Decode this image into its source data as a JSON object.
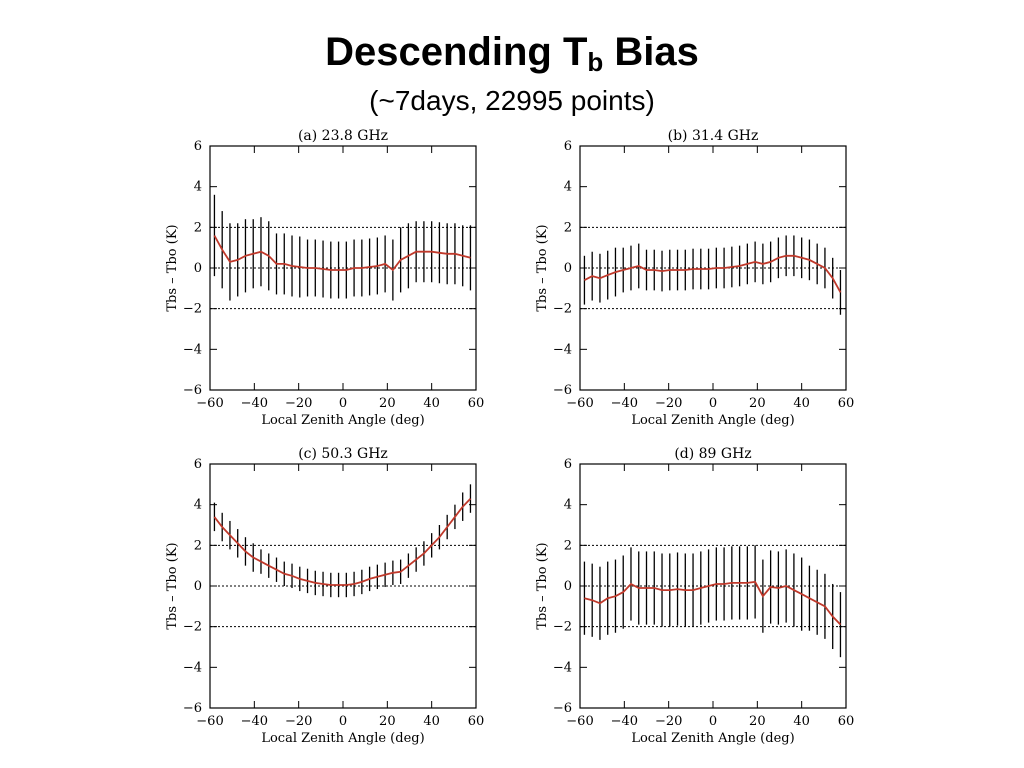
{
  "title": {
    "main": "Descending T",
    "sub": "b",
    "suffix": " Bias",
    "subtitle": "(~7days, 22995 points)"
  },
  "colors": {
    "mean_line": "#c0392b",
    "error_bar": "#000000",
    "axis": "#000000"
  },
  "chart_data": [
    {
      "type": "line",
      "title": "(a) 23.8 GHz",
      "xlabel": "Local Zenith Angle (deg)",
      "ylabel": "Tbs – Tbo (K)",
      "xlim": [
        -60,
        60
      ],
      "ylim": [
        -6,
        6
      ],
      "xticks": [
        -60,
        -40,
        -20,
        0,
        20,
        40,
        60
      ],
      "yticks": [
        -6,
        -4,
        -2,
        0,
        2,
        4,
        6
      ],
      "reference_lines": [
        2,
        0,
        -2
      ],
      "x": [
        -58,
        -54.5,
        -51,
        -47.5,
        -44,
        -40.5,
        -37,
        -33.5,
        -30,
        -26.5,
        -23,
        -19.5,
        -16,
        -12.5,
        -9,
        -5.5,
        -2,
        1.5,
        5,
        8.5,
        12,
        15.5,
        19,
        22.5,
        26,
        29.5,
        33,
        36.5,
        40,
        43.5,
        47,
        50.5,
        54,
        57.5
      ],
      "series": [
        {
          "values": [
            1.6,
            0.9,
            0.3,
            0.4,
            0.6,
            0.7,
            0.8,
            0.6,
            0.2,
            0.2,
            0.1,
            0.05,
            0.0,
            0.0,
            -0.05,
            -0.1,
            -0.1,
            -0.1,
            0.0,
            0.0,
            0.05,
            0.1,
            0.2,
            -0.1,
            0.4,
            0.6,
            0.8,
            0.8,
            0.8,
            0.75,
            0.7,
            0.7,
            0.6,
            0.5
          ],
          "err": [
            2.0,
            1.9,
            1.9,
            1.8,
            1.8,
            1.7,
            1.7,
            1.7,
            1.5,
            1.5,
            1.5,
            1.5,
            1.4,
            1.4,
            1.4,
            1.4,
            1.4,
            1.4,
            1.4,
            1.4,
            1.4,
            1.4,
            1.4,
            1.5,
            1.6,
            1.6,
            1.5,
            1.5,
            1.5,
            1.5,
            1.5,
            1.5,
            1.5,
            1.6
          ]
        }
      ]
    },
    {
      "type": "line",
      "title": "(b) 31.4 GHz",
      "xlabel": "Local Zenith Angle (deg)",
      "ylabel": "Tbs – Tbo (K)",
      "xlim": [
        -60,
        60
      ],
      "ylim": [
        -6,
        6
      ],
      "xticks": [
        -60,
        -40,
        -20,
        0,
        20,
        40,
        60
      ],
      "yticks": [
        -6,
        -4,
        -2,
        0,
        2,
        4,
        6
      ],
      "reference_lines": [
        2,
        0,
        -2
      ],
      "x": [
        -58,
        -54.5,
        -51,
        -47.5,
        -44,
        -40.5,
        -37,
        -33.5,
        -30,
        -26.5,
        -23,
        -19.5,
        -16,
        -12.5,
        -9,
        -5.5,
        -2,
        1.5,
        5,
        8.5,
        12,
        15.5,
        19,
        22.5,
        26,
        29.5,
        33,
        36.5,
        40,
        43.5,
        47,
        50.5,
        54,
        57.5
      ],
      "series": [
        {
          "values": [
            -0.6,
            -0.4,
            -0.5,
            -0.35,
            -0.2,
            -0.1,
            0.0,
            0.1,
            -0.1,
            -0.1,
            -0.15,
            -0.1,
            -0.1,
            -0.1,
            -0.05,
            -0.05,
            -0.05,
            0.0,
            0.0,
            0.05,
            0.1,
            0.2,
            0.3,
            0.2,
            0.3,
            0.5,
            0.6,
            0.6,
            0.5,
            0.4,
            0.2,
            0.0,
            -0.5,
            -1.2
          ],
          "err": [
            1.2,
            1.2,
            1.2,
            1.2,
            1.2,
            1.1,
            1.1,
            1.1,
            1.0,
            1.0,
            1.0,
            1.0,
            1.0,
            1.0,
            1.0,
            1.0,
            1.0,
            1.0,
            1.0,
            1.0,
            1.0,
            1.0,
            1.0,
            1.0,
            1.0,
            1.0,
            1.0,
            1.0,
            1.0,
            1.0,
            1.0,
            1.0,
            1.0,
            1.1
          ]
        }
      ]
    },
    {
      "type": "line",
      "title": "(c) 50.3 GHz",
      "xlabel": "Local Zenith Angle (deg)",
      "ylabel": "Tbs – Tbo (K)",
      "xlim": [
        -60,
        60
      ],
      "ylim": [
        -6,
        6
      ],
      "xticks": [
        -60,
        -40,
        -20,
        0,
        20,
        40,
        60
      ],
      "yticks": [
        -6,
        -4,
        -2,
        0,
        2,
        4,
        6
      ],
      "reference_lines": [
        2,
        0,
        -2
      ],
      "x": [
        -58,
        -54.5,
        -51,
        -47.5,
        -44,
        -40.5,
        -37,
        -33.5,
        -30,
        -26.5,
        -23,
        -19.5,
        -16,
        -12.5,
        -9,
        -5.5,
        -2,
        1.5,
        5,
        8.5,
        12,
        15.5,
        19,
        22.5,
        26,
        29.5,
        33,
        36.5,
        40,
        43.5,
        47,
        50.5,
        54,
        57.5
      ],
      "series": [
        {
          "values": [
            3.4,
            2.9,
            2.5,
            2.1,
            1.7,
            1.4,
            1.2,
            1.0,
            0.8,
            0.6,
            0.5,
            0.35,
            0.25,
            0.15,
            0.1,
            0.05,
            0.05,
            0.05,
            0.1,
            0.2,
            0.35,
            0.45,
            0.55,
            0.65,
            0.7,
            1.0,
            1.3,
            1.6,
            2.0,
            2.4,
            2.9,
            3.4,
            3.9,
            4.3
          ],
          "err": [
            0.7,
            0.7,
            0.7,
            0.7,
            0.7,
            0.7,
            0.6,
            0.6,
            0.6,
            0.6,
            0.6,
            0.6,
            0.6,
            0.6,
            0.6,
            0.6,
            0.6,
            0.6,
            0.6,
            0.6,
            0.6,
            0.6,
            0.6,
            0.6,
            0.6,
            0.6,
            0.6,
            0.6,
            0.6,
            0.6,
            0.6,
            0.6,
            0.7,
            0.7
          ]
        }
      ]
    },
    {
      "type": "line",
      "title": "(d) 89 GHz",
      "xlabel": "Local Zenith Angle (deg)",
      "ylabel": "Tbs – Tbo (K)",
      "xlim": [
        -60,
        60
      ],
      "ylim": [
        -6,
        6
      ],
      "xticks": [
        -60,
        -40,
        -20,
        0,
        20,
        40,
        60
      ],
      "yticks": [
        -6,
        -4,
        -2,
        0,
        2,
        4,
        6
      ],
      "reference_lines": [
        2,
        0,
        -2
      ],
      "x": [
        -58,
        -54.5,
        -51,
        -47.5,
        -44,
        -40.5,
        -37,
        -33.5,
        -30,
        -26.5,
        -23,
        -19.5,
        -16,
        -12.5,
        -9,
        -5.5,
        -2,
        1.5,
        5,
        8.5,
        12,
        15.5,
        19,
        22.5,
        26,
        29.5,
        33,
        36.5,
        40,
        43.5,
        47,
        50.5,
        54,
        57.5
      ],
      "series": [
        {
          "values": [
            -0.6,
            -0.7,
            -0.85,
            -0.6,
            -0.5,
            -0.3,
            0.1,
            -0.1,
            -0.1,
            -0.1,
            -0.2,
            -0.2,
            -0.15,
            -0.2,
            -0.2,
            -0.1,
            0.0,
            0.1,
            0.1,
            0.15,
            0.15,
            0.15,
            0.2,
            -0.5,
            -0.05,
            -0.1,
            0.0,
            -0.2,
            -0.4,
            -0.6,
            -0.8,
            -1.0,
            -1.5,
            -1.9
          ],
          "err": [
            1.8,
            1.8,
            1.8,
            1.8,
            1.8,
            1.8,
            1.8,
            1.8,
            1.8,
            1.8,
            1.8,
            1.8,
            1.8,
            1.8,
            1.8,
            1.8,
            1.8,
            1.8,
            1.8,
            1.8,
            1.8,
            1.8,
            1.8,
            1.8,
            1.8,
            1.8,
            1.8,
            1.8,
            1.8,
            1.6,
            1.6,
            1.6,
            1.6,
            1.6
          ]
        }
      ]
    }
  ]
}
